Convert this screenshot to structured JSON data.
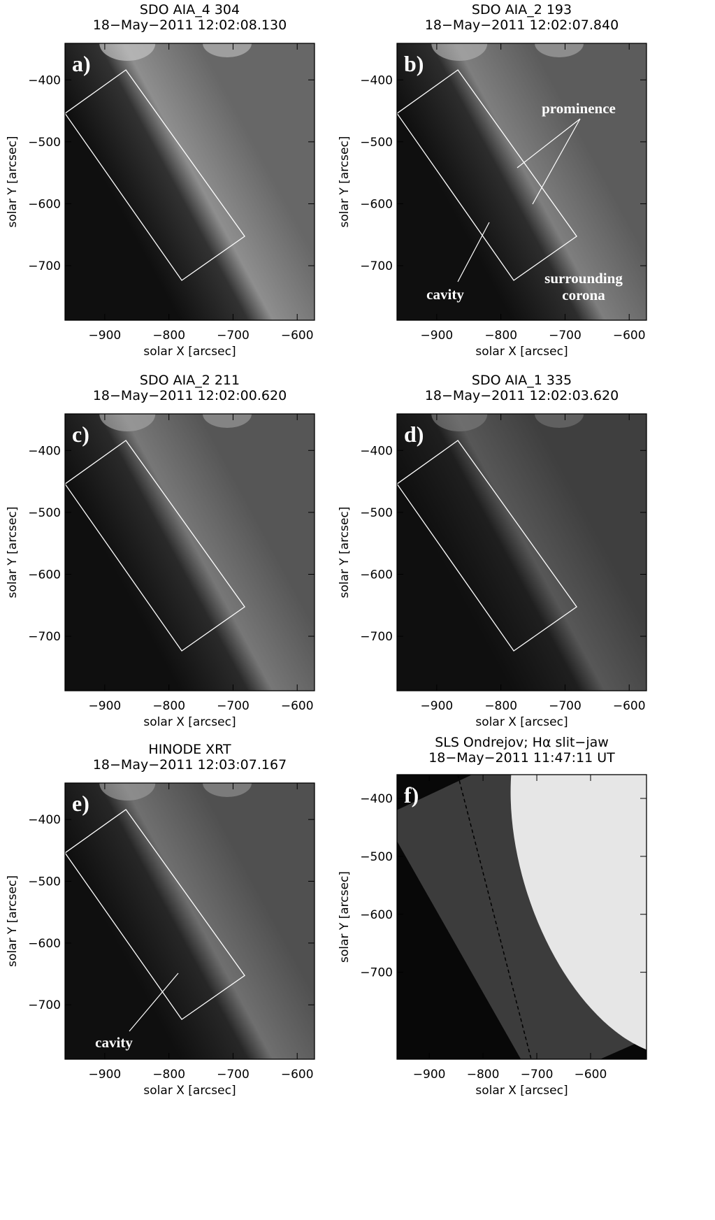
{
  "chart_data": [
    {
      "type": "image",
      "title": [
        "SDO AIA_4 304",
        "18−May−2011 12:02:08.130"
      ],
      "panel_label": "a)",
      "xlabel": "solar X [arcsec]",
      "ylabel": "solar Y [arcsec]",
      "xlim": [
        -962,
        -573
      ],
      "ylim": [
        -788,
        -341
      ],
      "xticks": [
        {
          "value": -900,
          "label": "−900"
        },
        {
          "value": -800,
          "label": "−800"
        },
        {
          "value": -700,
          "label": "−700"
        },
        {
          "value": -600,
          "label": "−600"
        }
      ],
      "yticks": [
        {
          "value": -400,
          "label": "−400"
        },
        {
          "value": -500,
          "label": "−500"
        },
        {
          "value": -600,
          "label": "−600"
        },
        {
          "value": -700,
          "label": "−700"
        }
      ],
      "annotations": []
    },
    {
      "type": "image",
      "title": [
        "SDO AIA_2 193",
        "18−May−2011 12:02:07.840"
      ],
      "panel_label": "b)",
      "xlabel": "solar X [arcsec]",
      "ylabel": "solar Y [arcsec]",
      "xlim": [
        -962,
        -573
      ],
      "ylim": [
        -788,
        -341
      ],
      "xticks": [
        {
          "value": -900,
          "label": "−900"
        },
        {
          "value": -800,
          "label": "−800"
        },
        {
          "value": -700,
          "label": "−700"
        },
        {
          "value": -600,
          "label": "−600"
        }
      ],
      "yticks": [
        {
          "value": -400,
          "label": "−400"
        },
        {
          "value": -500,
          "label": "−500"
        },
        {
          "value": -600,
          "label": "−600"
        },
        {
          "value": -700,
          "label": "−700"
        }
      ],
      "annotations": [
        "prominence",
        "surrounding",
        "corona",
        "cavity"
      ]
    },
    {
      "type": "image",
      "title": [
        "SDO AIA_2 211",
        "18−May−2011 12:02:00.620"
      ],
      "panel_label": "c)",
      "xlabel": "solar X [arcsec]",
      "ylabel": "solar Y [arcsec]",
      "xlim": [
        -962,
        -573
      ],
      "ylim": [
        -788,
        -341
      ],
      "xticks": [
        {
          "value": -900,
          "label": "−900"
        },
        {
          "value": -800,
          "label": "−800"
        },
        {
          "value": -700,
          "label": "−700"
        },
        {
          "value": -600,
          "label": "−600"
        }
      ],
      "yticks": [
        {
          "value": -400,
          "label": "−400"
        },
        {
          "value": -500,
          "label": "−500"
        },
        {
          "value": -600,
          "label": "−600"
        },
        {
          "value": -700,
          "label": "−700"
        }
      ],
      "annotations": []
    },
    {
      "type": "image",
      "title": [
        "SDO AIA_1 335",
        "18−May−2011 12:02:03.620"
      ],
      "panel_label": "d)",
      "xlabel": "solar X [arcsec]",
      "ylabel": "solar Y [arcsec]",
      "xlim": [
        -962,
        -573
      ],
      "ylim": [
        -788,
        -341
      ],
      "xticks": [
        {
          "value": -900,
          "label": "−900"
        },
        {
          "value": -800,
          "label": "−800"
        },
        {
          "value": -700,
          "label": "−700"
        },
        {
          "value": -600,
          "label": "−600"
        }
      ],
      "yticks": [
        {
          "value": -400,
          "label": "−400"
        },
        {
          "value": -500,
          "label": "−500"
        },
        {
          "value": -600,
          "label": "−600"
        },
        {
          "value": -700,
          "label": "−700"
        }
      ],
      "annotations": []
    },
    {
      "type": "image",
      "title": [
        "HINODE XRT",
        "18−May−2011 12:03:07.167"
      ],
      "panel_label": "e)",
      "xlabel": "solar X [arcsec]",
      "ylabel": "solar Y [arcsec]",
      "xlim": [
        -962,
        -573
      ],
      "ylim": [
        -788,
        -341
      ],
      "xticks": [
        {
          "value": -900,
          "label": "−900"
        },
        {
          "value": -800,
          "label": "−800"
        },
        {
          "value": -700,
          "label": "−700"
        },
        {
          "value": -600,
          "label": "−600"
        }
      ],
      "yticks": [
        {
          "value": -400,
          "label": "−400"
        },
        {
          "value": -500,
          "label": "−500"
        },
        {
          "value": -600,
          "label": "−600"
        },
        {
          "value": -700,
          "label": "−700"
        }
      ],
      "annotations": [
        "cavity"
      ]
    },
    {
      "type": "image",
      "title": [
        "SLS Ondrejov; Hα slit−jaw",
        "18−May−2011 11:47:11 UT"
      ],
      "panel_label": "f)",
      "xlabel": "solar X [arcsec]",
      "ylabel": "solar Y [arcsec]",
      "xlim": [
        -960,
        -496
      ],
      "ylim": [
        -850,
        -359
      ],
      "xticks": [
        {
          "value": -900,
          "label": "−900"
        },
        {
          "value": -800,
          "label": "−800"
        },
        {
          "value": -700,
          "label": "−700"
        },
        {
          "value": -600,
          "label": "−600"
        }
      ],
      "yticks": [
        {
          "value": -400,
          "label": "−400"
        },
        {
          "value": -500,
          "label": "−500"
        },
        {
          "value": -600,
          "label": "−600"
        },
        {
          "value": -700,
          "label": "−700"
        }
      ],
      "annotations": []
    }
  ]
}
